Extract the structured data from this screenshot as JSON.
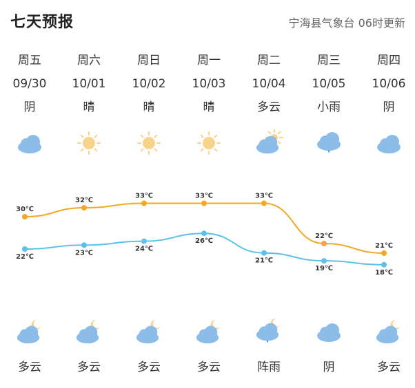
{
  "header": {
    "title": "七天预报",
    "source": "宁海县气象台",
    "update": "06时更新"
  },
  "days": [
    {
      "weekday": "周五",
      "date": "09/30",
      "day_weather": "阴",
      "night_weather": "多云",
      "day_icon": "cloud-icon",
      "night_icon": "cloudy-night-icon"
    },
    {
      "weekday": "周六",
      "date": "10/01",
      "day_weather": "晴",
      "night_weather": "多云",
      "day_icon": "sun-icon",
      "night_icon": "cloudy-night-icon"
    },
    {
      "weekday": "周日",
      "date": "10/02",
      "day_weather": "晴",
      "night_weather": "多云",
      "day_icon": "sun-icon",
      "night_icon": "cloudy-night-icon"
    },
    {
      "weekday": "周一",
      "date": "10/03",
      "day_weather": "晴",
      "night_weather": "多云",
      "day_icon": "sun-icon",
      "night_icon": "cloudy-night-icon"
    },
    {
      "weekday": "周二",
      "date": "10/04",
      "day_weather": "多云",
      "night_weather": "阵雨",
      "day_icon": "partly-cloudy-day-icon",
      "night_icon": "shower-night-icon"
    },
    {
      "weekday": "周三",
      "date": "10/05",
      "day_weather": "小雨",
      "night_weather": "阴",
      "day_icon": "light-rain-icon",
      "night_icon": "cloud-icon"
    },
    {
      "weekday": "周四",
      "date": "10/06",
      "day_weather": "阴",
      "night_weather": "多云",
      "day_icon": "cloud-icon",
      "night_icon": "cloudy-night-icon"
    }
  ],
  "chart_data": {
    "type": "line",
    "categories": [
      "09/30",
      "10/01",
      "10/02",
      "10/03",
      "10/04",
      "10/05",
      "10/06"
    ],
    "series": [
      {
        "values": [
          30,
          32,
          33,
          33,
          33,
          22,
          21
        ],
        "color": "#f5a623"
      },
      {
        "values": [
          22,
          23,
          24,
          26,
          21,
          19,
          18
        ],
        "color": "#5bc0eb"
      }
    ],
    "unit": "℃",
    "labels_high": [
      "30℃",
      "32℃",
      "33℃",
      "33℃",
      "33℃",
      "22℃",
      "21℃"
    ],
    "labels_low": [
      "22℃",
      "23℃",
      "24℃",
      "26℃",
      "21℃",
      "19℃",
      "18℃"
    ]
  },
  "colors": {
    "cloud": "#8cbde8",
    "sun": "#f8d48a",
    "moon": "#f8d48a",
    "rain": "#4a9fe0"
  }
}
